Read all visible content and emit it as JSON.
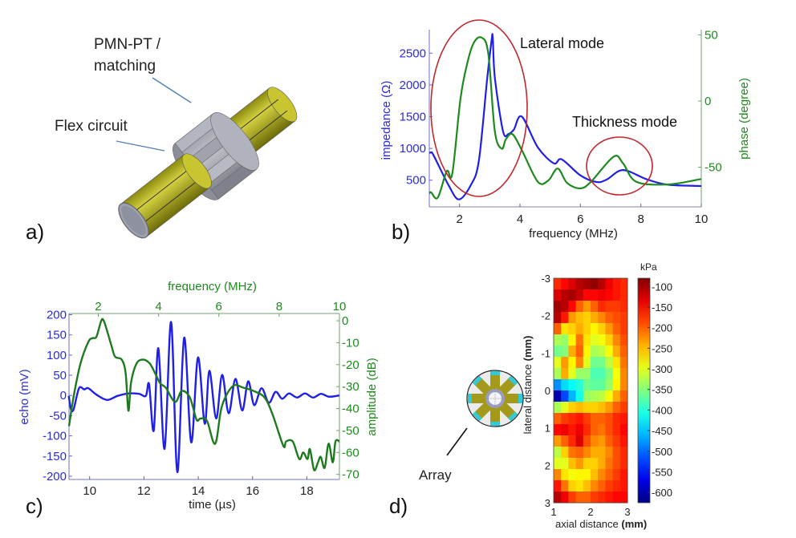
{
  "panels": {
    "a": {
      "label": "a)",
      "callout_top_line1": "PMN-PT /",
      "callout_top_line2": "matching",
      "callout_left": "Flex circuit",
      "colors": {
        "flex": "#b7b41e",
        "pmn": "#a9acb6",
        "tube": "#9ea2b0"
      }
    },
    "b": {
      "label": "b)"
    },
    "c": {
      "label": "c)"
    },
    "d": {
      "label": "d)",
      "array_label": "Array",
      "colors": {
        "spoke": "#a39a1c",
        "tip": "#33c9d6",
        "ring": "#9a9cc0"
      }
    }
  },
  "chart_data": [
    {
      "id": "b",
      "type": "line",
      "xlabel": "frequency (MHz)",
      "ylabel": "impedance (Ω)",
      "y2label": "phase (degree)",
      "xlim": [
        1,
        10
      ],
      "ylim": [
        80,
        2870
      ],
      "y2lim": [
        -80,
        54
      ],
      "xticks": [
        2,
        4,
        6,
        8,
        10
      ],
      "yticks": [
        500,
        1000,
        1500,
        2000,
        2500
      ],
      "y2ticks": [
        -50,
        0,
        50
      ],
      "annotations": [
        "Lateral mode",
        "Thickness mode"
      ],
      "annotation_color": "#c0272d",
      "series": [
        {
          "axis": "left",
          "color": "#1f1fe6",
          "x": [
            1.0,
            1.06,
            1.14,
            1.63,
            1.98,
            2.38,
            2.64,
            2.91,
            3.06,
            3.1,
            3.17,
            3.44,
            3.62,
            3.8,
            4.06,
            4.59,
            5.12,
            5.38,
            6.0,
            6.53,
            6.88,
            7.41,
            8.2,
            8.91,
            9.97,
            10.0
          ],
          "y": [
            930,
            934,
            892,
            429,
            197,
            429,
            808,
            2070,
            2700,
            2744,
            2113,
            1270,
            1228,
            1300,
            1502,
            1018,
            765,
            829,
            576,
            471,
            513,
            660,
            513,
            429,
            408,
            405
          ]
        },
        {
          "axis": "right",
          "color": "#1e8a1e",
          "x": [
            1.0,
            1.06,
            1.28,
            1.58,
            1.76,
            2.03,
            2.25,
            2.47,
            2.73,
            2.95,
            3.17,
            3.4,
            3.53,
            3.75,
            4.06,
            4.59,
            4.94,
            5.25,
            5.56,
            6.0,
            6.35,
            7.1,
            7.41,
            7.85,
            8.91,
            9.97,
            10.0
          ],
          "y": [
            -70,
            -69,
            -73,
            -53,
            -55,
            1.5,
            28,
            44,
            48,
            36,
            -23,
            -36,
            -29,
            -25,
            -37,
            -61,
            -60,
            -51,
            -62,
            -66,
            -61,
            -42,
            -47,
            -61,
            -63,
            -59,
            -59
          ]
        }
      ]
    },
    {
      "id": "c",
      "type": "line",
      "xlabel": "time (µs)",
      "x2label": "frequency (MHz)",
      "ylabel": "echo (mV)",
      "y2label": "amplitude (dB)",
      "xlim": [
        9.24,
        19.2
      ],
      "x2lim": [
        1.03,
        10
      ],
      "ylim": [
        -208,
        203
      ],
      "y2lim": [
        -72.3,
        3.3
      ],
      "xticks": [
        10,
        12,
        14,
        16,
        18
      ],
      "x2ticks": [
        2,
        4,
        6,
        8,
        10
      ],
      "yticks": [
        200,
        150,
        100,
        50,
        0,
        -50,
        -100,
        -150,
        -200
      ],
      "y2ticks": [
        0,
        -10,
        -20,
        -30,
        -40,
        -50,
        -60,
        -70
      ],
      "series": [
        {
          "axis": "bottom-left",
          "color": "#1f1fe6",
          "x": [
            9.23,
            9.31,
            9.41,
            9.61,
            9.8,
            9.95,
            10.25,
            10.64,
            11.03,
            11.43,
            11.82,
            12.07,
            12.19,
            12.36,
            12.53,
            12.76,
            13.0,
            13.23,
            13.48,
            13.74,
            13.99,
            14.24,
            14.41,
            14.66,
            14.88,
            15.12,
            15.37,
            15.62,
            15.84,
            16.06,
            16.33,
            16.6,
            16.85,
            17.09,
            17.34,
            17.64,
            17.93,
            18.23,
            18.52,
            18.82,
            19.2
          ],
          "y": [
            -1,
            -34,
            -34,
            18,
            15,
            18,
            2,
            -11,
            -1,
            5,
            4,
            -1,
            28,
            -87,
            117,
            -132,
            182,
            -190,
            143,
            -116,
            94,
            -70,
            61,
            -57,
            51,
            -44,
            41,
            -37,
            35,
            -24,
            18,
            -18,
            9,
            -8,
            5,
            -5,
            5,
            -5,
            4,
            -3,
            0
          ]
        },
        {
          "axis": "top-right",
          "color": "#1e7a1e",
          "x": [
            1.03,
            1.19,
            1.41,
            1.67,
            1.81,
            1.94,
            2.1,
            2.2,
            2.43,
            2.56,
            2.78,
            2.91,
            3.0,
            3.09,
            3.27,
            3.49,
            3.71,
            3.89,
            4.06,
            4.24,
            4.55,
            4.77,
            5.04,
            5.26,
            5.39,
            5.61,
            5.88,
            6.1,
            6.46,
            6.81,
            7.16,
            7.52,
            7.78,
            8.14,
            8.23,
            8.45,
            8.67,
            8.8,
            8.94,
            9.02,
            9.16,
            9.29,
            9.38,
            9.51,
            9.64,
            9.78,
            9.87,
            10.0
          ],
          "y": [
            -48,
            -34,
            -19.5,
            -9.7,
            -7.9,
            -7.3,
            0,
            -0.6,
            -11,
            -16.4,
            -17.7,
            -24,
            -41,
            -28,
            -19.5,
            -17.7,
            -19.5,
            -24,
            -28.6,
            -30.5,
            -37,
            -32,
            -35,
            -45,
            -44.5,
            -45.7,
            -56,
            -39,
            -29.8,
            -30.5,
            -32,
            -35,
            -42.6,
            -57,
            -55,
            -55,
            -63,
            -60,
            -63,
            -58.5,
            -68,
            -64.5,
            -62,
            -67,
            -56,
            -64.5,
            -55,
            -55
          ]
        }
      ]
    },
    {
      "id": "d",
      "type": "heatmap",
      "xlabel": "axial distance",
      "xlabel_unit": "(mm)",
      "ylabel": "lateral distance",
      "ylabel_unit": "(mm)",
      "colorbar_label": "kPa",
      "colormap": "jet",
      "xlim": [
        1,
        3
      ],
      "ylim": [
        -3,
        3
      ],
      "clim": [
        -625,
        -80
      ],
      "xticks": [
        1,
        2,
        3
      ],
      "yticks": [
        -3,
        -2,
        -1,
        0,
        1,
        2,
        3
      ],
      "cticks": [
        -100,
        -150,
        -200,
        -250,
        -300,
        -350,
        -400,
        -450,
        -500,
        -550,
        -600
      ],
      "x_centers": [
        1.1,
        1.3,
        1.5,
        1.7,
        1.9,
        2.1,
        2.3,
        2.5,
        2.7,
        2.9
      ],
      "y_centers": [
        -2.85,
        -2.55,
        -2.25,
        -1.95,
        -1.65,
        -1.35,
        -1.05,
        -0.75,
        -0.45,
        -0.15,
        0.15,
        0.45,
        0.75,
        1.05,
        1.35,
        1.65,
        1.95,
        2.25,
        2.55,
        2.85
      ],
      "values": [
        [
          -170,
          -150,
          -130,
          -110,
          -100,
          -90,
          -110,
          -140,
          -160,
          -170
        ],
        [
          -130,
          -110,
          -100,
          -120,
          -150,
          -150,
          -140,
          -150,
          -160,
          -170
        ],
        [
          -100,
          -110,
          -150,
          -200,
          -230,
          -200,
          -170,
          -180,
          -180,
          -170
        ],
        [
          -110,
          -160,
          -230,
          -250,
          -260,
          -240,
          -220,
          -200,
          -190,
          -180
        ],
        [
          -200,
          -270,
          -260,
          -240,
          -260,
          -280,
          -260,
          -230,
          -200,
          -180
        ],
        [
          -330,
          -340,
          -280,
          -210,
          -270,
          -300,
          -290,
          -260,
          -220,
          -190
        ],
        [
          -360,
          -350,
          -240,
          -200,
          -280,
          -330,
          -320,
          -290,
          -240,
          -200
        ],
        [
          -300,
          -230,
          -280,
          -220,
          -300,
          -360,
          -360,
          -320,
          -270,
          -210
        ],
        [
          -330,
          -240,
          -300,
          -340,
          -340,
          -380,
          -380,
          -350,
          -290,
          -220
        ],
        [
          -480,
          -440,
          -420,
          -400,
          -360,
          -370,
          -370,
          -340,
          -280,
          -220
        ],
        [
          -600,
          -520,
          -460,
          -410,
          -340,
          -330,
          -320,
          -290,
          -240,
          -200
        ],
        [
          -330,
          -300,
          -260,
          -250,
          -260,
          -260,
          -250,
          -230,
          -200,
          -180
        ],
        [
          -200,
          -180,
          -170,
          -160,
          -180,
          -200,
          -200,
          -190,
          -170,
          -160
        ],
        [
          -150,
          -140,
          -160,
          -140,
          -170,
          -200,
          -210,
          -190,
          -170,
          -150
        ],
        [
          -230,
          -200,
          -170,
          -130,
          -190,
          -220,
          -230,
          -200,
          -180,
          -160
        ],
        [
          -320,
          -260,
          -210,
          -200,
          -220,
          -240,
          -240,
          -220,
          -190,
          -170
        ],
        [
          -300,
          -300,
          -250,
          -230,
          -260,
          -260,
          -240,
          -210,
          -190,
          -170
        ],
        [
          -220,
          -270,
          -290,
          -280,
          -280,
          -250,
          -220,
          -200,
          -180,
          -160
        ],
        [
          -160,
          -210,
          -260,
          -270,
          -250,
          -220,
          -200,
          -180,
          -170,
          -160
        ],
        [
          -110,
          -140,
          -180,
          -200,
          -200,
          -180,
          -170,
          -160,
          -150,
          -150
        ]
      ]
    }
  ]
}
